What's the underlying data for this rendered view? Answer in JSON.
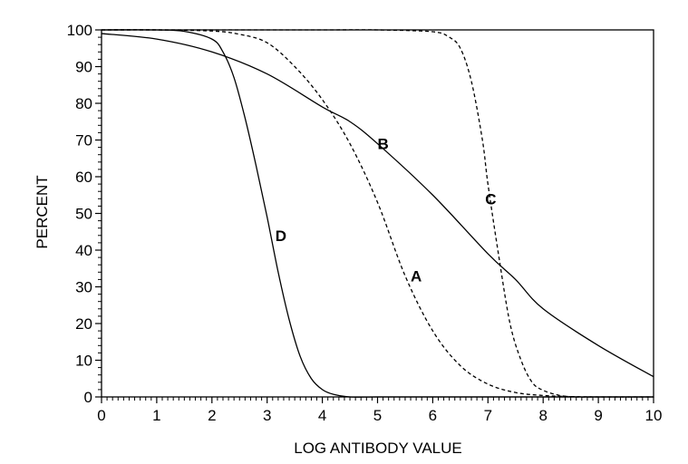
{
  "chart_data": {
    "type": "line",
    "title": "",
    "xlabel": "LOG ANTIBODY VALUE",
    "ylabel": "PERCENT",
    "xlim": [
      0,
      10
    ],
    "ylim": [
      0,
      100
    ],
    "x_ticks": [
      "0",
      "1",
      "2",
      "3",
      "4",
      "5",
      "6",
      "7",
      "8",
      "9",
      "10"
    ],
    "y_ticks": [
      "0",
      "10",
      "20",
      "30",
      "40",
      "50",
      "60",
      "70",
      "80",
      "90",
      "100"
    ],
    "grid": false,
    "legend": "none",
    "series": [
      {
        "name": "A",
        "style": "dashed",
        "x": [
          0,
          1,
          2,
          2.5,
          3,
          3.5,
          4,
          4.5,
          5,
          5.5,
          6,
          6.5,
          7,
          7.5,
          8,
          8.5,
          9,
          10
        ],
        "y": [
          100,
          100,
          99.7,
          98.8,
          96.5,
          90,
          81,
          69,
          53,
          33,
          18,
          8.5,
          3.5,
          1.2,
          0.4,
          0.1,
          0,
          0
        ]
      },
      {
        "name": "B",
        "style": "solid",
        "x": [
          0,
          1,
          2,
          3,
          4,
          4.5,
          5,
          6,
          7,
          7.5,
          8,
          9,
          10
        ],
        "y": [
          99,
          97.5,
          94,
          88,
          79,
          75,
          69,
          55,
          39,
          32,
          24,
          14,
          5.5
        ]
      },
      {
        "name": "C",
        "style": "dashed",
        "x": [
          0,
          2,
          4,
          5,
          6,
          6.3,
          6.5,
          6.7,
          6.9,
          7,
          7.2,
          7.4,
          7.6,
          7.8,
          8,
          8.3,
          8.6,
          9,
          10
        ],
        "y": [
          100,
          100,
          100,
          100,
          99.5,
          98,
          95,
          86,
          70,
          58,
          38,
          20,
          10,
          4,
          1.8,
          0.4,
          0,
          0,
          0
        ]
      },
      {
        "name": "D",
        "style": "solid",
        "x": [
          0,
          1,
          1.5,
          2,
          2.2,
          2.4,
          2.6,
          2.8,
          3,
          3.2,
          3.4,
          3.6,
          3.8,
          4,
          4.2,
          4.5,
          5,
          6,
          8,
          10
        ],
        "y": [
          100,
          100,
          99.6,
          97.5,
          94,
          87,
          76,
          63,
          49,
          34,
          21,
          11,
          5,
          2,
          0.7,
          0,
          0,
          0,
          0,
          0
        ]
      }
    ],
    "curve_labels": [
      {
        "text": "A",
        "x": 5.7,
        "y": 33
      },
      {
        "text": "B",
        "x": 5.1,
        "y": 69
      },
      {
        "text": "C",
        "x": 7.05,
        "y": 54
      },
      {
        "text": "D",
        "x": 3.25,
        "y": 44
      }
    ]
  }
}
